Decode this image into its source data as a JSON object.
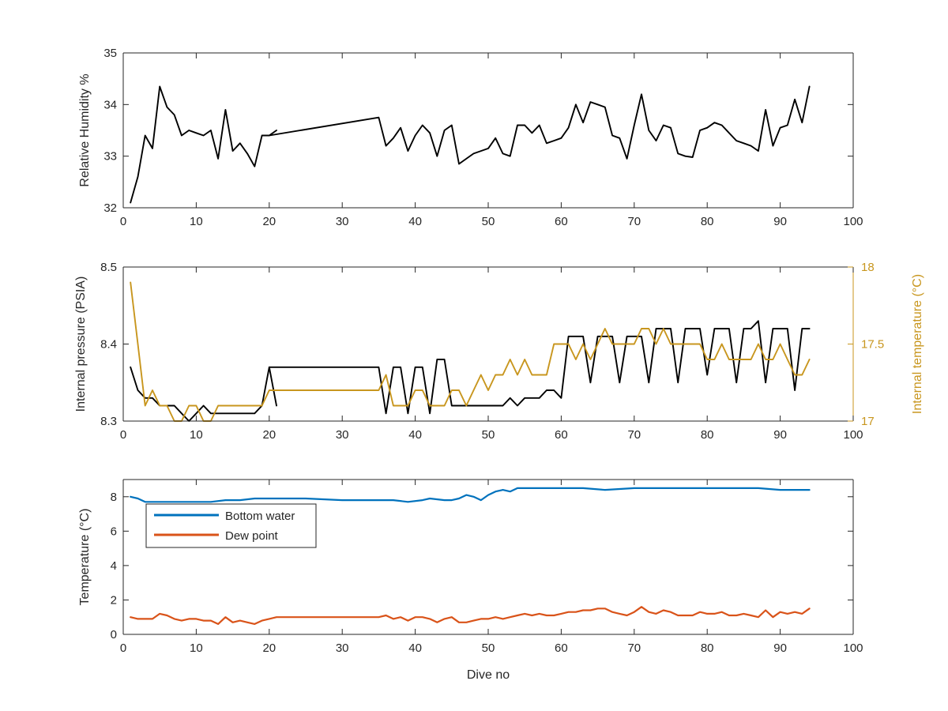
{
  "chart_data": [
    {
      "type": "line",
      "ylabel": "Relative Humidity %",
      "xlabel": "",
      "xlim": [
        0,
        100
      ],
      "ylim": [
        32,
        35
      ],
      "xticks": [
        0,
        10,
        20,
        30,
        40,
        50,
        60,
        70,
        80,
        90,
        100
      ],
      "yticks": [
        32,
        33,
        34,
        35
      ],
      "series": [
        {
          "color": "#000000",
          "segments": [
            {
              "x": [
                1,
                2,
                3,
                4,
                5,
                6,
                7,
                8,
                9,
                10,
                11,
                12,
                13,
                14,
                15,
                16,
                17,
                18,
                19,
                20,
                21
              ],
              "y": [
                32.1,
                32.6,
                33.4,
                33.15,
                34.35,
                33.95,
                33.8,
                33.4,
                33.5,
                33.45,
                33.4,
                33.5,
                32.95,
                33.9,
                33.1,
                33.25,
                33.05,
                32.8,
                33.4,
                33.4,
                33.5
              ]
            },
            {
              "x": [
                20,
                35,
                36,
                37,
                38,
                39,
                40,
                41,
                42,
                43,
                44,
                45,
                46,
                47,
                48,
                49,
                50,
                51,
                52,
                53,
                54,
                55,
                56,
                57,
                58,
                59,
                60,
                61,
                62,
                63,
                64,
                65,
                66,
                67,
                68,
                69,
                70,
                71,
                72,
                73,
                74,
                75,
                76,
                77,
                78,
                79,
                80,
                81,
                82,
                83,
                84,
                85,
                86,
                87,
                88,
                89,
                90,
                91,
                92,
                93,
                94
              ],
              "y": [
                33.4,
                33.75,
                33.2,
                33.35,
                33.55,
                33.1,
                33.4,
                33.6,
                33.45,
                33.0,
                33.5,
                33.6,
                32.85,
                32.95,
                33.05,
                33.1,
                33.15,
                33.35,
                33.05,
                33.0,
                33.6,
                33.6,
                33.45,
                33.6,
                33.25,
                33.3,
                33.35,
                33.55,
                34.0,
                33.65,
                34.05,
                34.0,
                33.95,
                33.4,
                33.35,
                32.95,
                33.6,
                34.2,
                33.5,
                33.3,
                33.6,
                33.55,
                33.05,
                33.0,
                32.98,
                33.5,
                33.55,
                33.65,
                33.6,
                33.45,
                33.3,
                33.25,
                33.2,
                33.1,
                33.9,
                33.2,
                33.55,
                33.6,
                34.1,
                33.65,
                34.35
              ]
            }
          ]
        }
      ]
    },
    {
      "type": "line",
      "ylabel": "Internal pressure (PSIA)",
      "ylabel_right": "Internal temperature (°C)",
      "xlim": [
        0,
        100
      ],
      "ylim": [
        8.3,
        8.5
      ],
      "ylim_right": [
        17,
        18
      ],
      "xticks": [
        0,
        10,
        20,
        30,
        40,
        50,
        60,
        70,
        80,
        90,
        100
      ],
      "yticks": [
        8.3,
        8.4,
        8.5
      ],
      "yticks_right": [
        17,
        17.5,
        18
      ],
      "series": [
        {
          "axis": "left",
          "color": "#000000",
          "segments": [
            {
              "x": [
                1,
                2,
                3,
                4,
                5,
                6,
                7,
                8,
                9,
                10,
                11,
                12,
                13,
                14,
                15,
                16,
                17,
                18,
                19,
                20,
                21
              ],
              "y": [
                8.37,
                8.34,
                8.33,
                8.33,
                8.32,
                8.32,
                8.32,
                8.31,
                8.3,
                8.31,
                8.32,
                8.31,
                8.31,
                8.31,
                8.31,
                8.31,
                8.31,
                8.31,
                8.32,
                8.37,
                8.32
              ]
            },
            {
              "x": [
                20,
                35,
                36,
                37,
                38,
                39,
                40,
                41,
                42,
                43,
                44,
                45,
                46,
                47,
                48,
                49,
                50,
                51,
                52,
                53,
                54,
                55,
                56,
                57,
                58,
                59,
                60,
                61,
                62,
                63,
                64,
                65,
                66,
                67,
                68,
                69,
                70,
                71,
                72,
                73,
                74,
                75,
                76,
                77,
                78,
                79,
                80,
                81,
                82,
                83,
                84,
                85,
                86,
                87,
                88,
                89,
                90,
                91,
                92,
                93,
                94
              ],
              "y": [
                8.37,
                8.37,
                8.31,
                8.37,
                8.37,
                8.31,
                8.37,
                8.37,
                8.31,
                8.38,
                8.38,
                8.32,
                8.32,
                8.32,
                8.32,
                8.32,
                8.32,
                8.32,
                8.32,
                8.33,
                8.32,
                8.33,
                8.33,
                8.33,
                8.34,
                8.34,
                8.33,
                8.41,
                8.41,
                8.41,
                8.35,
                8.41,
                8.41,
                8.41,
                8.35,
                8.41,
                8.41,
                8.41,
                8.35,
                8.42,
                8.42,
                8.42,
                8.35,
                8.42,
                8.42,
                8.42,
                8.36,
                8.42,
                8.42,
                8.42,
                8.35,
                8.42,
                8.42,
                8.43,
                8.35,
                8.42,
                8.42,
                8.42,
                8.34,
                8.42,
                8.42
              ]
            }
          ]
        },
        {
          "axis": "right",
          "color": "#C8961E",
          "segments": [
            {
              "x": [
                1,
                2,
                3,
                4,
                5,
                6,
                7,
                8,
                9,
                10,
                11,
                12,
                13,
                14,
                15,
                16,
                17,
                18,
                19,
                20,
                35,
                36,
                37,
                38,
                39,
                40,
                41,
                42,
                43,
                44,
                45,
                46,
                47,
                48,
                49,
                50,
                51,
                52,
                53,
                54,
                55,
                56,
                57,
                58,
                59,
                60,
                61,
                62,
                63,
                64,
                65,
                66,
                67,
                68,
                69,
                70,
                71,
                72,
                73,
                74,
                75,
                76,
                77,
                78,
                79,
                80,
                81,
                82,
                83,
                84,
                85,
                86,
                87,
                88,
                89,
                90,
                91,
                92,
                93,
                94
              ],
              "y": [
                17.9,
                17.5,
                17.1,
                17.2,
                17.1,
                17.1,
                17.0,
                17.0,
                17.1,
                17.1,
                17.0,
                17.0,
                17.1,
                17.1,
                17.1,
                17.1,
                17.1,
                17.1,
                17.1,
                17.2,
                17.2,
                17.3,
                17.1,
                17.1,
                17.1,
                17.2,
                17.2,
                17.1,
                17.1,
                17.1,
                17.2,
                17.2,
                17.1,
                17.2,
                17.3,
                17.2,
                17.3,
                17.3,
                17.4,
                17.3,
                17.4,
                17.3,
                17.3,
                17.3,
                17.5,
                17.5,
                17.5,
                17.4,
                17.5,
                17.4,
                17.5,
                17.6,
                17.5,
                17.5,
                17.5,
                17.5,
                17.6,
                17.6,
                17.5,
                17.6,
                17.5,
                17.5,
                17.5,
                17.5,
                17.5,
                17.4,
                17.4,
                17.5,
                17.4,
                17.4,
                17.4,
                17.4,
                17.5,
                17.4,
                17.4,
                17.5,
                17.4,
                17.3,
                17.3,
                17.4
              ]
            }
          ]
        }
      ]
    },
    {
      "type": "line",
      "ylabel": "Temperature (°C)",
      "xlabel": "Dive no",
      "xlim": [
        0,
        100
      ],
      "ylim": [
        0,
        9
      ],
      "xticks": [
        0,
        10,
        20,
        30,
        40,
        50,
        60,
        70,
        80,
        90,
        100
      ],
      "yticks": [
        0,
        2,
        4,
        6,
        8
      ],
      "legend": {
        "placement": "top-left"
      },
      "series": [
        {
          "name": "Bottom water",
          "color": "#0072BD",
          "x": [
            1,
            2,
            3,
            4,
            5,
            6,
            7,
            8,
            9,
            10,
            12,
            14,
            16,
            18,
            20,
            22,
            25,
            30,
            35,
            37,
            39,
            41,
            42,
            44,
            45,
            46,
            47,
            48,
            49,
            50,
            51,
            52,
            53,
            54,
            56,
            58,
            60,
            63,
            66,
            70,
            75,
            80,
            85,
            87,
            90,
            94
          ],
          "y": [
            8.0,
            7.9,
            7.7,
            7.7,
            7.7,
            7.7,
            7.7,
            7.7,
            7.7,
            7.7,
            7.7,
            7.8,
            7.8,
            7.9,
            7.9,
            7.9,
            7.9,
            7.8,
            7.8,
            7.8,
            7.7,
            7.8,
            7.9,
            7.8,
            7.8,
            7.9,
            8.1,
            8.0,
            7.8,
            8.1,
            8.3,
            8.4,
            8.3,
            8.5,
            8.5,
            8.5,
            8.5,
            8.5,
            8.4,
            8.5,
            8.5,
            8.5,
            8.5,
            8.5,
            8.4,
            8.4
          ]
        },
        {
          "name": "Dew point",
          "color": "#D95319",
          "x": [
            1,
            2,
            3,
            4,
            5,
            6,
            7,
            8,
            9,
            10,
            11,
            12,
            13,
            14,
            15,
            16,
            17,
            18,
            19,
            20,
            21,
            35,
            36,
            37,
            38,
            39,
            40,
            41,
            42,
            43,
            44,
            45,
            46,
            47,
            48,
            49,
            50,
            51,
            52,
            53,
            54,
            55,
            56,
            57,
            58,
            59,
            60,
            61,
            62,
            63,
            64,
            65,
            66,
            67,
            68,
            69,
            70,
            71,
            72,
            73,
            74,
            75,
            76,
            77,
            78,
            79,
            80,
            81,
            82,
            83,
            84,
            85,
            86,
            87,
            88,
            89,
            90,
            91,
            92,
            93,
            94
          ],
          "y": [
            1.0,
            0.9,
            0.9,
            0.9,
            1.2,
            1.1,
            0.9,
            0.8,
            0.9,
            0.9,
            0.8,
            0.8,
            0.6,
            1.0,
            0.7,
            0.8,
            0.7,
            0.6,
            0.8,
            0.9,
            1.0,
            1.0,
            1.1,
            0.9,
            1.0,
            0.8,
            1.0,
            1.0,
            0.9,
            0.7,
            0.9,
            1.0,
            0.7,
            0.7,
            0.8,
            0.9,
            0.9,
            1.0,
            0.9,
            1.0,
            1.1,
            1.2,
            1.1,
            1.2,
            1.1,
            1.1,
            1.2,
            1.3,
            1.3,
            1.4,
            1.4,
            1.5,
            1.5,
            1.3,
            1.2,
            1.1,
            1.3,
            1.6,
            1.3,
            1.2,
            1.4,
            1.3,
            1.1,
            1.1,
            1.1,
            1.3,
            1.2,
            1.2,
            1.3,
            1.1,
            1.1,
            1.2,
            1.1,
            1.0,
            1.4,
            1.0,
            1.3,
            1.2,
            1.3,
            1.2,
            1.5
          ]
        }
      ]
    }
  ]
}
